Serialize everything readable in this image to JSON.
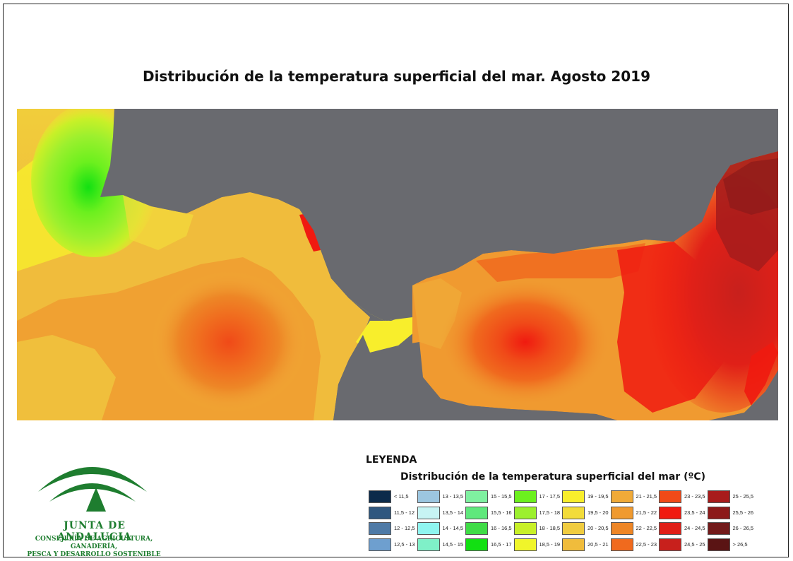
{
  "title": "Distribución de la temperatura superficial del mar. Agosto 2019",
  "legend": {
    "heading": "LEYENDA",
    "subtitle": "Distribución de la temperatura superficial del mar",
    "unit": "(ºC)",
    "classes": [
      {
        "label": "< 11,5",
        "color": "#0b2a4a"
      },
      {
        "label": "11,5 - 12",
        "color": "#2f577f"
      },
      {
        "label": "12 - 12,5",
        "color": "#4f7aa6"
      },
      {
        "label": "12,5 - 13",
        "color": "#6e9fcf"
      },
      {
        "label": "13 - 13,5",
        "color": "#9cc6e0"
      },
      {
        "label": "13,5 - 14",
        "color": "#c7f4f4"
      },
      {
        "label": "14 - 14,5",
        "color": "#8ff5f0"
      },
      {
        "label": "14,5 - 15",
        "color": "#7ff0c8"
      },
      {
        "label": "15 - 15,5",
        "color": "#7ff0a0"
      },
      {
        "label": "15,5 - 16",
        "color": "#5fe87c"
      },
      {
        "label": "16 - 16,5",
        "color": "#3fdc46"
      },
      {
        "label": "16,5 - 17",
        "color": "#12e012"
      },
      {
        "label": "17 - 17,5",
        "color": "#6cf01e"
      },
      {
        "label": "17,5 - 18",
        "color": "#9cf02e"
      },
      {
        "label": "18 - 18,5",
        "color": "#c8f028"
      },
      {
        "label": "18,5 - 19",
        "color": "#f0f52a"
      },
      {
        "label": "19 - 19,5",
        "color": "#f8ee2c"
      },
      {
        "label": "19,5 - 20",
        "color": "#f2dc3a"
      },
      {
        "label": "20 - 20,5",
        "color": "#f0cc40"
      },
      {
        "label": "20,5 - 21",
        "color": "#f0bc3c"
      },
      {
        "label": "21 - 21,5",
        "color": "#f0aa38"
      },
      {
        "label": "21,5 - 22",
        "color": "#f09a30"
      },
      {
        "label": "22 - 22,5",
        "color": "#ee8626"
      },
      {
        "label": "22,5 - 23",
        "color": "#f06a1e"
      },
      {
        "label": "23 - 23,5",
        "color": "#f04a18"
      },
      {
        "label": "23,5 - 24",
        "color": "#f01a10"
      },
      {
        "label": "24 - 24,5",
        "color": "#e02018"
      },
      {
        "label": "24,5 - 25",
        "color": "#c8201c"
      },
      {
        "label": "25 - 25,5",
        "color": "#a81c1c"
      },
      {
        "label": "25,5 - 26",
        "color": "#8c1a1a"
      },
      {
        "label": "26 - 26,5",
        "color": "#721a1a"
      },
      {
        "label": "> 26,5",
        "color": "#5a1414"
      }
    ]
  },
  "logo": {
    "name": "JUNTA DE ANDALUCIA",
    "subtitle_line1": "CONSEJERÍA DE AGRICULTURA, GANADERÍA,",
    "subtitle_line2": "PESCA Y DESARROLLO SOSTENIBLE",
    "color": "#1e7d2f"
  },
  "colors": {
    "land": "#696a6f"
  }
}
